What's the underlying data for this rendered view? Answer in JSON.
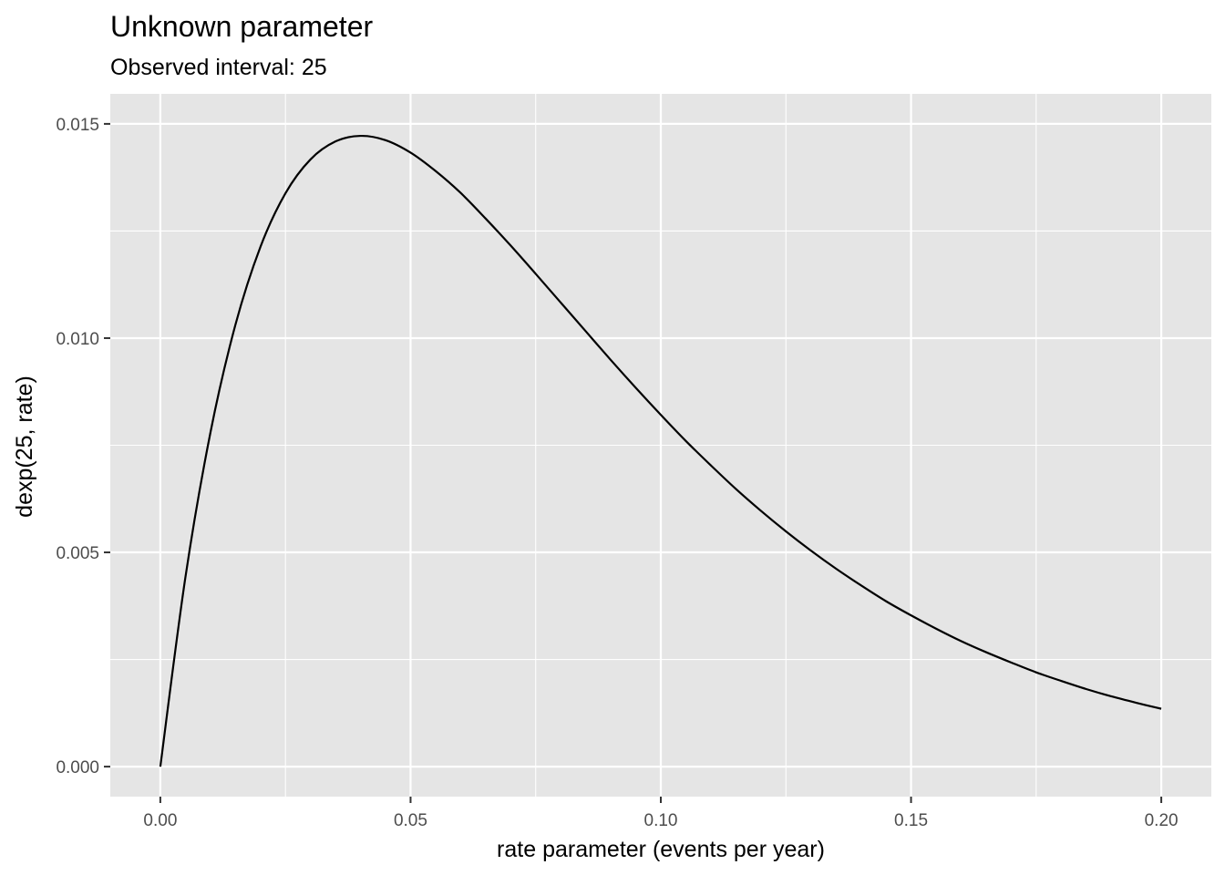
{
  "chart_data": {
    "type": "line",
    "title": "Unknown parameter",
    "subtitle": "Observed interval: 25",
    "xlabel": "rate parameter (events per year)",
    "ylabel": "dexp(25, rate)",
    "xlim": [
      -0.01,
      0.21
    ],
    "ylim": [
      -0.0007,
      0.0157
    ],
    "x_ticks": [
      0.0,
      0.05,
      0.1,
      0.15,
      0.2
    ],
    "x_tick_labels": [
      "0.00",
      "0.05",
      "0.10",
      "0.15",
      "0.20"
    ],
    "y_ticks": [
      0.0,
      0.005,
      0.01,
      0.015
    ],
    "y_tick_labels": [
      "0.000",
      "0.005",
      "0.010",
      "0.015"
    ],
    "grid": true,
    "panel_background": "#e5e5e5",
    "grid_color": "#ffffff",
    "line_color": "#000000",
    "series": [
      {
        "x": [
          0.0,
          0.005,
          0.01,
          0.015,
          0.02,
          0.025,
          0.03,
          0.035,
          0.04,
          0.045,
          0.05,
          0.055,
          0.06,
          0.065,
          0.07,
          0.075,
          0.08,
          0.085,
          0.09,
          0.095,
          0.1,
          0.105,
          0.11,
          0.115,
          0.12,
          0.125,
          0.13,
          0.135,
          0.14,
          0.145,
          0.15,
          0.155,
          0.16,
          0.165,
          0.17,
          0.175,
          0.18,
          0.185,
          0.19,
          0.195,
          0.2
        ],
        "y": [
          0.0,
          0.00441,
          0.00779,
          0.01031,
          0.01213,
          0.01338,
          0.01417,
          0.01459,
          0.01472,
          0.01462,
          0.01433,
          0.0139,
          0.01339,
          0.01279,
          0.01216,
          0.0115,
          0.01083,
          0.01016,
          0.00949,
          0.00884,
          0.00821,
          0.0076,
          0.00703,
          0.00648,
          0.00597,
          0.00549,
          0.00504,
          0.00462,
          0.00423,
          0.00386,
          0.00353,
          0.00322,
          0.00293,
          0.00267,
          0.00243,
          0.0022,
          0.002,
          0.00181,
          0.00164,
          0.00149,
          0.00135
        ]
      }
    ]
  }
}
